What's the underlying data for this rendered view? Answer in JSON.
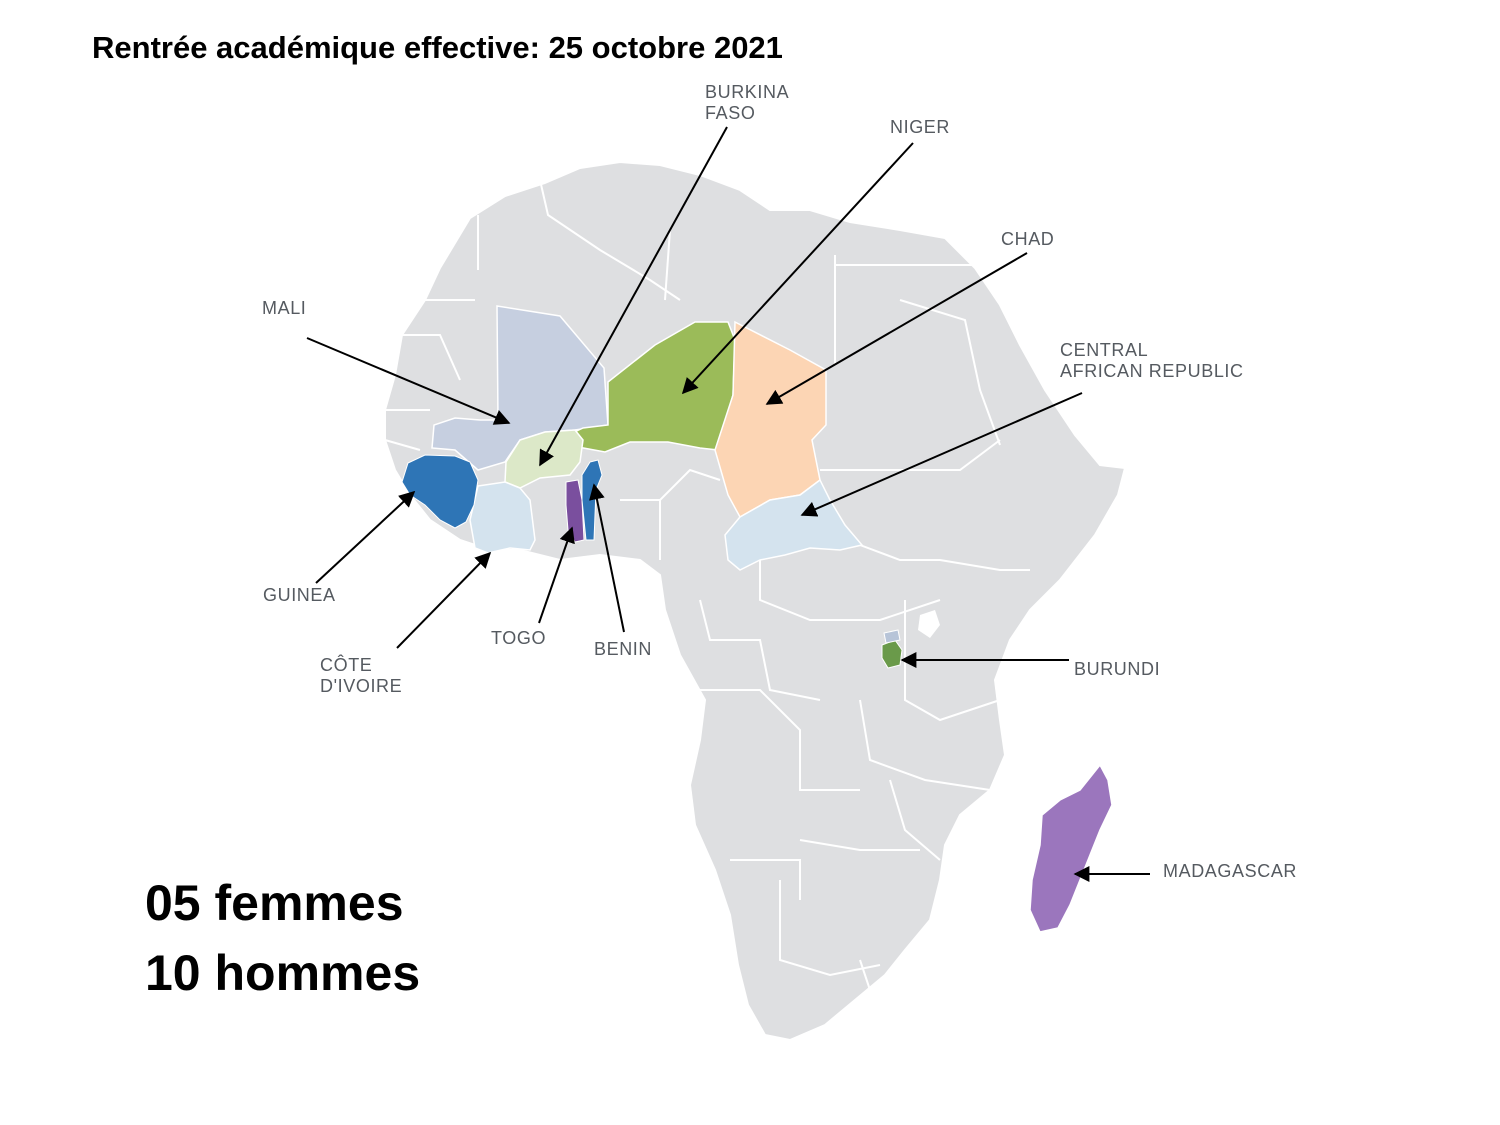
{
  "title": "Rentrée académique effective: 25 octobre 2021",
  "stats": {
    "women": "05 femmes",
    "men": "10 hommes"
  },
  "countries": {
    "burkina_faso": {
      "line1": "BURKINA",
      "line2": "FASO",
      "color": "#dce8c8"
    },
    "niger": {
      "label": "NIGER",
      "color": "#9bbb59"
    },
    "chad": {
      "label": "CHAD",
      "color": "#fcd5b4"
    },
    "mali": {
      "label": "MALI",
      "color": "#c6cfe0"
    },
    "central_african_republic": {
      "line1": "CENTRAL",
      "line2": "AFRICAN REPUBLIC",
      "color": "#d4e3ee"
    },
    "guinea": {
      "label": "GUINEA",
      "color": "#2e75b6"
    },
    "cote_divoire": {
      "line1": "CÔTE",
      "line2": "D'IVOIRE",
      "color": "#d4e3ee"
    },
    "togo": {
      "label": "TOGO",
      "color": "#7a4f9e"
    },
    "benin": {
      "label": "BENIN",
      "color": "#2e75b6"
    },
    "burundi": {
      "label": "BURUNDI",
      "color": "#6a9a4a"
    },
    "madagascar": {
      "label": "MADAGASCAR",
      "color": "#9b76bd"
    }
  },
  "land_color": "#dedfe1",
  "border_color": "#ffffff"
}
